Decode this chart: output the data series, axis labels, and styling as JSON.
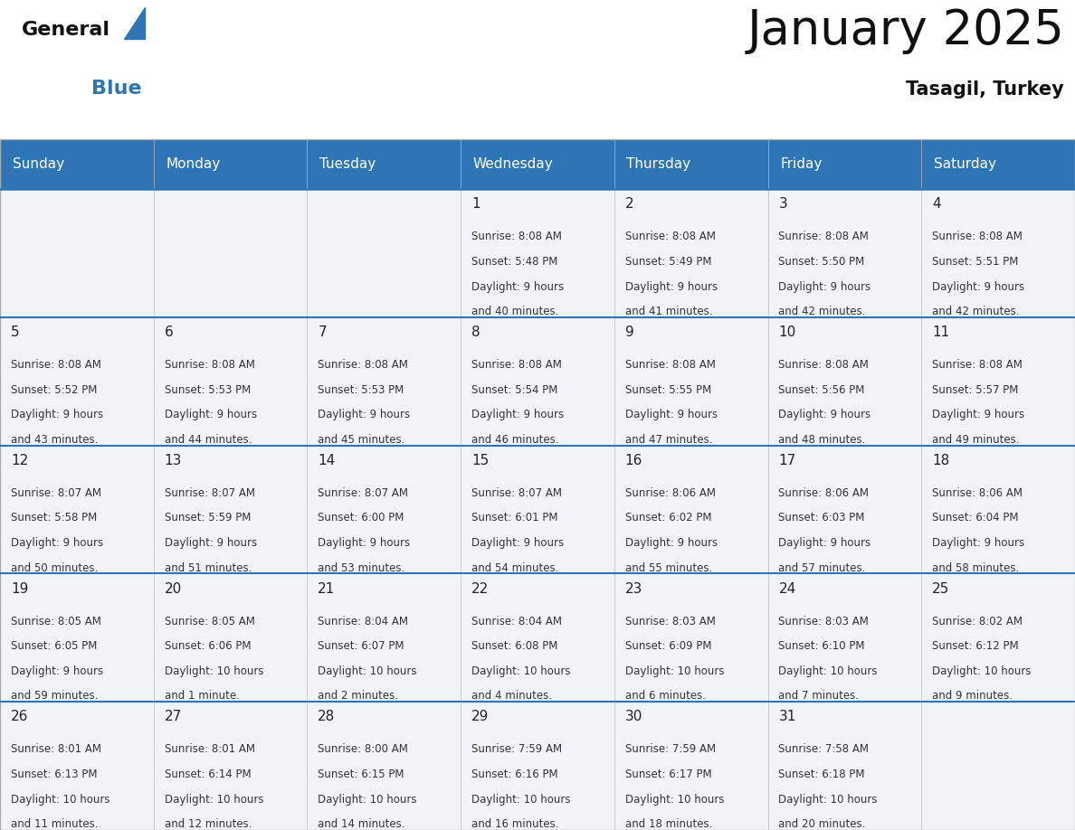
{
  "title": "January 2025",
  "subtitle": "Tasagil, Turkey",
  "header_color": "#2e75b6",
  "header_text_color": "#ffffff",
  "day_names": [
    "Sunday",
    "Monday",
    "Tuesday",
    "Wednesday",
    "Thursday",
    "Friday",
    "Saturday"
  ],
  "background_color": "#ffffff",
  "cell_bg_color": "#f0f4f8",
  "separator_color": "#2e75b6",
  "text_color": "#333333",
  "day_number_color": "#222222",
  "days": [
    {
      "day": null,
      "col": 0,
      "row": 0,
      "info": null
    },
    {
      "day": null,
      "col": 1,
      "row": 0,
      "info": null
    },
    {
      "day": null,
      "col": 2,
      "row": 0,
      "info": null
    },
    {
      "day": 1,
      "col": 3,
      "row": 0,
      "info": {
        "sunrise": "8:08 AM",
        "sunset": "5:48 PM",
        "daylight": "9 hours and 40 minutes."
      }
    },
    {
      "day": 2,
      "col": 4,
      "row": 0,
      "info": {
        "sunrise": "8:08 AM",
        "sunset": "5:49 PM",
        "daylight": "9 hours and 41 minutes."
      }
    },
    {
      "day": 3,
      "col": 5,
      "row": 0,
      "info": {
        "sunrise": "8:08 AM",
        "sunset": "5:50 PM",
        "daylight": "9 hours and 42 minutes."
      }
    },
    {
      "day": 4,
      "col": 6,
      "row": 0,
      "info": {
        "sunrise": "8:08 AM",
        "sunset": "5:51 PM",
        "daylight": "9 hours and 42 minutes."
      }
    },
    {
      "day": 5,
      "col": 0,
      "row": 1,
      "info": {
        "sunrise": "8:08 AM",
        "sunset": "5:52 PM",
        "daylight": "9 hours and 43 minutes."
      }
    },
    {
      "day": 6,
      "col": 1,
      "row": 1,
      "info": {
        "sunrise": "8:08 AM",
        "sunset": "5:53 PM",
        "daylight": "9 hours and 44 minutes."
      }
    },
    {
      "day": 7,
      "col": 2,
      "row": 1,
      "info": {
        "sunrise": "8:08 AM",
        "sunset": "5:53 PM",
        "daylight": "9 hours and 45 minutes."
      }
    },
    {
      "day": 8,
      "col": 3,
      "row": 1,
      "info": {
        "sunrise": "8:08 AM",
        "sunset": "5:54 PM",
        "daylight": "9 hours and 46 minutes."
      }
    },
    {
      "day": 9,
      "col": 4,
      "row": 1,
      "info": {
        "sunrise": "8:08 AM",
        "sunset": "5:55 PM",
        "daylight": "9 hours and 47 minutes."
      }
    },
    {
      "day": 10,
      "col": 5,
      "row": 1,
      "info": {
        "sunrise": "8:08 AM",
        "sunset": "5:56 PM",
        "daylight": "9 hours and 48 minutes."
      }
    },
    {
      "day": 11,
      "col": 6,
      "row": 1,
      "info": {
        "sunrise": "8:08 AM",
        "sunset": "5:57 PM",
        "daylight": "9 hours and 49 minutes."
      }
    },
    {
      "day": 12,
      "col": 0,
      "row": 2,
      "info": {
        "sunrise": "8:07 AM",
        "sunset": "5:58 PM",
        "daylight": "9 hours and 50 minutes."
      }
    },
    {
      "day": 13,
      "col": 1,
      "row": 2,
      "info": {
        "sunrise": "8:07 AM",
        "sunset": "5:59 PM",
        "daylight": "9 hours and 51 minutes."
      }
    },
    {
      "day": 14,
      "col": 2,
      "row": 2,
      "info": {
        "sunrise": "8:07 AM",
        "sunset": "6:00 PM",
        "daylight": "9 hours and 53 minutes."
      }
    },
    {
      "day": 15,
      "col": 3,
      "row": 2,
      "info": {
        "sunrise": "8:07 AM",
        "sunset": "6:01 PM",
        "daylight": "9 hours and 54 minutes."
      }
    },
    {
      "day": 16,
      "col": 4,
      "row": 2,
      "info": {
        "sunrise": "8:06 AM",
        "sunset": "6:02 PM",
        "daylight": "9 hours and 55 minutes."
      }
    },
    {
      "day": 17,
      "col": 5,
      "row": 2,
      "info": {
        "sunrise": "8:06 AM",
        "sunset": "6:03 PM",
        "daylight": "9 hours and 57 minutes."
      }
    },
    {
      "day": 18,
      "col": 6,
      "row": 2,
      "info": {
        "sunrise": "8:06 AM",
        "sunset": "6:04 PM",
        "daylight": "9 hours and 58 minutes."
      }
    },
    {
      "day": 19,
      "col": 0,
      "row": 3,
      "info": {
        "sunrise": "8:05 AM",
        "sunset": "6:05 PM",
        "daylight": "9 hours and 59 minutes."
      }
    },
    {
      "day": 20,
      "col": 1,
      "row": 3,
      "info": {
        "sunrise": "8:05 AM",
        "sunset": "6:06 PM",
        "daylight": "10 hours and 1 minute."
      }
    },
    {
      "day": 21,
      "col": 2,
      "row": 3,
      "info": {
        "sunrise": "8:04 AM",
        "sunset": "6:07 PM",
        "daylight": "10 hours and 2 minutes."
      }
    },
    {
      "day": 22,
      "col": 3,
      "row": 3,
      "info": {
        "sunrise": "8:04 AM",
        "sunset": "6:08 PM",
        "daylight": "10 hours and 4 minutes."
      }
    },
    {
      "day": 23,
      "col": 4,
      "row": 3,
      "info": {
        "sunrise": "8:03 AM",
        "sunset": "6:09 PM",
        "daylight": "10 hours and 6 minutes."
      }
    },
    {
      "day": 24,
      "col": 5,
      "row": 3,
      "info": {
        "sunrise": "8:03 AM",
        "sunset": "6:10 PM",
        "daylight": "10 hours and 7 minutes."
      }
    },
    {
      "day": 25,
      "col": 6,
      "row": 3,
      "info": {
        "sunrise": "8:02 AM",
        "sunset": "6:12 PM",
        "daylight": "10 hours and 9 minutes."
      }
    },
    {
      "day": 26,
      "col": 0,
      "row": 4,
      "info": {
        "sunrise": "8:01 AM",
        "sunset": "6:13 PM",
        "daylight": "10 hours and 11 minutes."
      }
    },
    {
      "day": 27,
      "col": 1,
      "row": 4,
      "info": {
        "sunrise": "8:01 AM",
        "sunset": "6:14 PM",
        "daylight": "10 hours and 12 minutes."
      }
    },
    {
      "day": 28,
      "col": 2,
      "row": 4,
      "info": {
        "sunrise": "8:00 AM",
        "sunset": "6:15 PM",
        "daylight": "10 hours and 14 minutes."
      }
    },
    {
      "day": 29,
      "col": 3,
      "row": 4,
      "info": {
        "sunrise": "7:59 AM",
        "sunset": "6:16 PM",
        "daylight": "10 hours and 16 minutes."
      }
    },
    {
      "day": 30,
      "col": 4,
      "row": 4,
      "info": {
        "sunrise": "7:59 AM",
        "sunset": "6:17 PM",
        "daylight": "10 hours and 18 minutes."
      }
    },
    {
      "day": 31,
      "col": 5,
      "row": 4,
      "info": {
        "sunrise": "7:58 AM",
        "sunset": "6:18 PM",
        "daylight": "10 hours and 20 minutes."
      }
    },
    {
      "day": null,
      "col": 6,
      "row": 4,
      "info": null
    }
  ],
  "logo_general_color": "#111111",
  "logo_blue_color": "#2e75b6",
  "logo_triangle_color": "#2e75b6",
  "title_fontsize": 38,
  "subtitle_fontsize": 15,
  "header_fontsize": 11,
  "day_num_fontsize": 11,
  "info_fontsize": 8.5
}
